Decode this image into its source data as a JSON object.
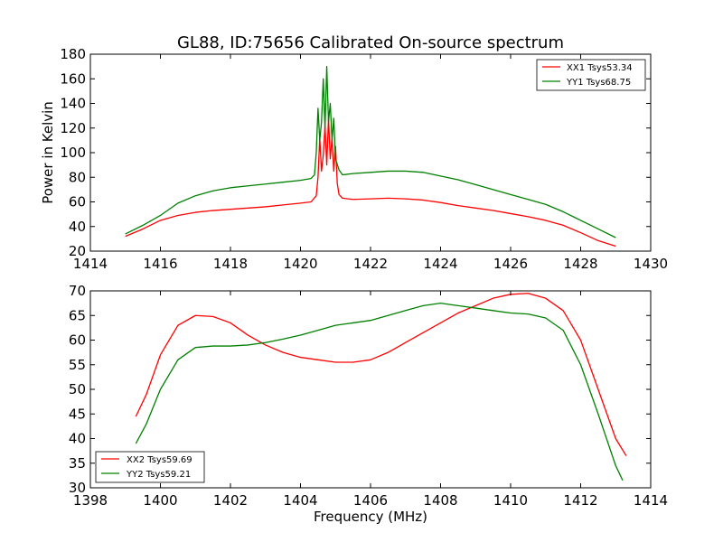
{
  "chart_data": [
    {
      "type": "line",
      "title": "GL88, ID:75656 Calibrated On-source spectrum",
      "xlabel": "",
      "ylabel": "Power in Kelvin",
      "xlim": [
        1414,
        1430
      ],
      "ylim": [
        20,
        180
      ],
      "xticks": [
        "1414",
        "1416",
        "1418",
        "1420",
        "1422",
        "1424",
        "1426",
        "1428",
        "1430"
      ],
      "yticks": [
        "20",
        "40",
        "60",
        "80",
        "100",
        "120",
        "140",
        "160",
        "180"
      ],
      "legend": "top-right",
      "series": [
        {
          "name": "XX1 Tsys53.34",
          "color": "#ff0000",
          "points": [
            [
              1415.0,
              32
            ],
            [
              1415.5,
              38
            ],
            [
              1416.0,
              45
            ],
            [
              1416.5,
              49
            ],
            [
              1417.0,
              51.5
            ],
            [
              1417.5,
              53
            ],
            [
              1418.0,
              54
            ],
            [
              1418.5,
              55
            ],
            [
              1419.0,
              56
            ],
            [
              1419.5,
              57.5
            ],
            [
              1420.0,
              59
            ],
            [
              1420.3,
              60
            ],
            [
              1420.45,
              65
            ],
            [
              1420.5,
              80
            ],
            [
              1420.55,
              112
            ],
            [
              1420.6,
              85
            ],
            [
              1420.65,
              98
            ],
            [
              1420.7,
              122
            ],
            [
              1420.75,
              90
            ],
            [
              1420.8,
              128
            ],
            [
              1420.85,
              95
            ],
            [
              1420.9,
              112
            ],
            [
              1420.95,
              85
            ],
            [
              1421.0,
              105
            ],
            [
              1421.05,
              75
            ],
            [
              1421.1,
              66
            ],
            [
              1421.2,
              63
            ],
            [
              1421.5,
              62
            ],
            [
              1422.0,
              62.5
            ],
            [
              1422.5,
              63
            ],
            [
              1423.0,
              62.5
            ],
            [
              1423.5,
              61.5
            ],
            [
              1424.0,
              59.5
            ],
            [
              1424.5,
              57
            ],
            [
              1425.0,
              55
            ],
            [
              1425.5,
              53
            ],
            [
              1426.0,
              50.5
            ],
            [
              1426.5,
              48
            ],
            [
              1427.0,
              45
            ],
            [
              1427.5,
              41
            ],
            [
              1428.0,
              35
            ],
            [
              1428.5,
              28.5
            ],
            [
              1429.0,
              24
            ]
          ]
        },
        {
          "name": "YY1 Tsys68.75",
          "color": "#008000",
          "points": [
            [
              1415.0,
              34
            ],
            [
              1415.5,
              41
            ],
            [
              1416.0,
              49
            ],
            [
              1416.5,
              59
            ],
            [
              1417.0,
              65
            ],
            [
              1417.5,
              69
            ],
            [
              1418.0,
              71.5
            ],
            [
              1418.5,
              73
            ],
            [
              1419.0,
              74.5
            ],
            [
              1419.5,
              76
            ],
            [
              1420.0,
              77.5
            ],
            [
              1420.3,
              79
            ],
            [
              1420.4,
              82
            ],
            [
              1420.45,
              100
            ],
            [
              1420.5,
              136
            ],
            [
              1420.55,
              110
            ],
            [
              1420.6,
              125
            ],
            [
              1420.65,
              160
            ],
            [
              1420.7,
              120
            ],
            [
              1420.75,
              170
            ],
            [
              1420.8,
              125
            ],
            [
              1420.85,
              140
            ],
            [
              1420.9,
              110
            ],
            [
              1420.95,
              128
            ],
            [
              1421.0,
              95
            ],
            [
              1421.1,
              86
            ],
            [
              1421.2,
              82
            ],
            [
              1421.5,
              83
            ],
            [
              1422.0,
              84
            ],
            [
              1422.5,
              85
            ],
            [
              1423.0,
              85
            ],
            [
              1423.5,
              84
            ],
            [
              1424.0,
              81
            ],
            [
              1424.5,
              78
            ],
            [
              1425.0,
              74
            ],
            [
              1425.5,
              70
            ],
            [
              1426.0,
              66
            ],
            [
              1426.5,
              62
            ],
            [
              1427.0,
              58
            ],
            [
              1427.5,
              52
            ],
            [
              1428.0,
              45
            ],
            [
              1428.5,
              38
            ],
            [
              1429.0,
              31
            ]
          ]
        }
      ]
    },
    {
      "type": "line",
      "title": "",
      "xlabel": "Frequency (MHz)",
      "ylabel": "",
      "xlim": [
        1398,
        1414
      ],
      "ylim": [
        30,
        70
      ],
      "xticks": [
        "1398",
        "1400",
        "1402",
        "1404",
        "1406",
        "1408",
        "1410",
        "1412",
        "1414"
      ],
      "yticks": [
        "30",
        "35",
        "40",
        "45",
        "50",
        "55",
        "60",
        "65",
        "70"
      ],
      "legend": "bottom-left",
      "series": [
        {
          "name": "XX2 Tsys59.69",
          "color": "#ff0000",
          "points": [
            [
              1399.3,
              44.5
            ],
            [
              1399.6,
              49
            ],
            [
              1400.0,
              57
            ],
            [
              1400.5,
              63
            ],
            [
              1401.0,
              65
            ],
            [
              1401.5,
              64.8
            ],
            [
              1402.0,
              63.5
            ],
            [
              1402.5,
              61
            ],
            [
              1403.0,
              59
            ],
            [
              1403.5,
              57.5
            ],
            [
              1404.0,
              56.5
            ],
            [
              1404.5,
              56
            ],
            [
              1405.0,
              55.5
            ],
            [
              1405.5,
              55.5
            ],
            [
              1406.0,
              56
            ],
            [
              1406.5,
              57.5
            ],
            [
              1407.0,
              59.5
            ],
            [
              1407.5,
              61.5
            ],
            [
              1408.0,
              63.5
            ],
            [
              1408.5,
              65.5
            ],
            [
              1409.0,
              67
            ],
            [
              1409.5,
              68.5
            ],
            [
              1410.0,
              69.3
            ],
            [
              1410.5,
              69.5
            ],
            [
              1411.0,
              68.5
            ],
            [
              1411.5,
              66
            ],
            [
              1412.0,
              60
            ],
            [
              1412.5,
              50
            ],
            [
              1413.0,
              40
            ],
            [
              1413.3,
              36.5
            ]
          ]
        },
        {
          "name": "YY2 Tsys59.21",
          "color": "#008000",
          "points": [
            [
              1399.3,
              39
            ],
            [
              1399.6,
              43
            ],
            [
              1400.0,
              50
            ],
            [
              1400.5,
              56
            ],
            [
              1401.0,
              58.5
            ],
            [
              1401.5,
              58.8
            ],
            [
              1402.0,
              58.8
            ],
            [
              1402.5,
              59
            ],
            [
              1403.0,
              59.5
            ],
            [
              1403.5,
              60.2
            ],
            [
              1404.0,
              61
            ],
            [
              1404.5,
              62
            ],
            [
              1405.0,
              63
            ],
            [
              1405.5,
              63.5
            ],
            [
              1406.0,
              64
            ],
            [
              1406.5,
              65
            ],
            [
              1407.0,
              66
            ],
            [
              1407.5,
              67
            ],
            [
              1408.0,
              67.5
            ],
            [
              1408.5,
              67
            ],
            [
              1409.0,
              66.5
            ],
            [
              1409.5,
              66
            ],
            [
              1410.0,
              65.5
            ],
            [
              1410.5,
              65.3
            ],
            [
              1411.0,
              64.5
            ],
            [
              1411.5,
              62
            ],
            [
              1412.0,
              55
            ],
            [
              1412.5,
              45
            ],
            [
              1413.0,
              34.5
            ],
            [
              1413.2,
              31.5
            ]
          ]
        }
      ]
    }
  ]
}
